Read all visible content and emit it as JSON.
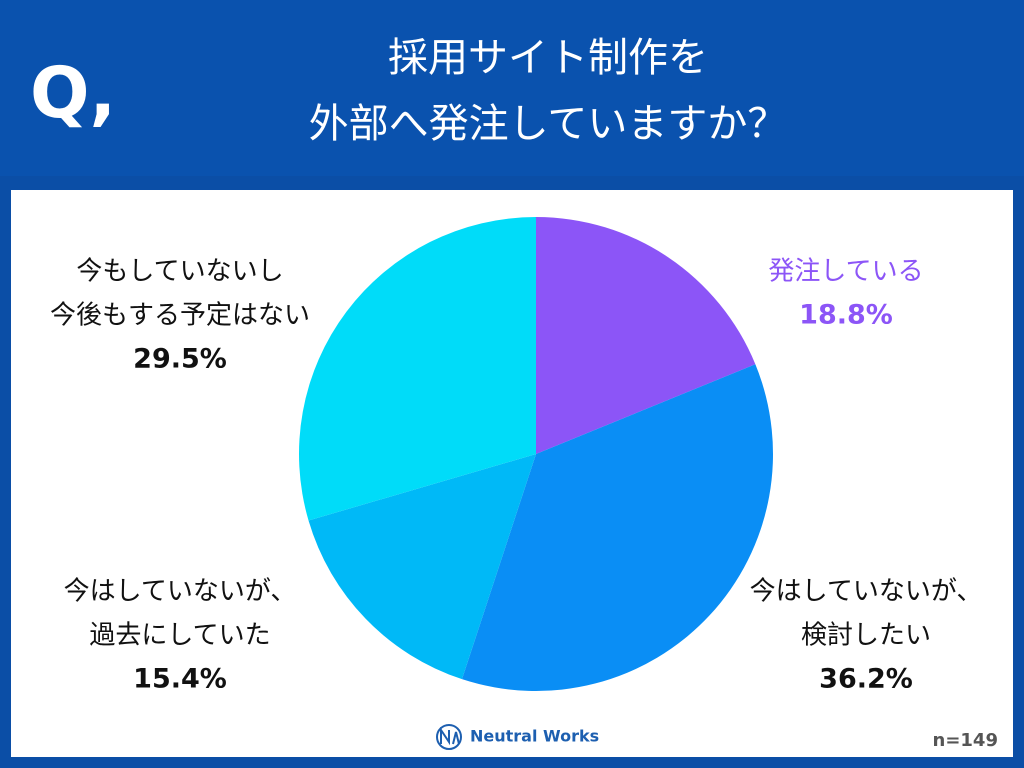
{
  "chart_data": {
    "type": "pie",
    "header_mark": "Q,",
    "title": [
      "採用サイト制作を",
      "外部へ発注していますか？"
    ],
    "categories": [
      [
        "発注している"
      ],
      [
        "今はしていないが、",
        "検討したい"
      ],
      [
        "今はしていないが、",
        "過去にしていた"
      ],
      [
        "今もしていないし",
        "今後もする予定はない"
      ]
    ],
    "values": [
      18.8,
      36.2,
      15.4,
      29.5
    ],
    "value_labels": [
      "18.8%",
      "36.2%",
      "15.4%",
      "29.5%"
    ],
    "colors": [
      "#8c55f7",
      "#0a8ef5",
      "#00b9f7",
      "#00dcf9"
    ],
    "note": "n=149",
    "brand": "Neutral Works"
  }
}
